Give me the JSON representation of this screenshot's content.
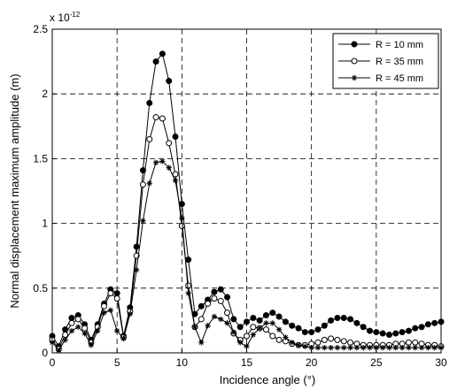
{
  "chart_data": {
    "type": "line",
    "xlabel": "Incidence angle (°)",
    "ylabel": "Normal displacement maximum amplitude (m)",
    "y_multiplier": "x 10",
    "y_exponent": "-12",
    "xlim": [
      0,
      30
    ],
    "ylim": [
      0,
      2.5
    ],
    "xticks": [
      "0",
      "5",
      "10",
      "15",
      "20",
      "25",
      "30"
    ],
    "yticks": [
      "0",
      "0.5",
      "1",
      "1.5",
      "2",
      "2.5"
    ],
    "grid": true,
    "legend_position": "top-right",
    "x": [
      0,
      0.5,
      1,
      1.5,
      2,
      2.5,
      3,
      3.5,
      4,
      4.5,
      5,
      5.5,
      6,
      6.5,
      7,
      7.5,
      8,
      8.5,
      9,
      9.5,
      10,
      10.5,
      11,
      11.5,
      12,
      12.5,
      13,
      13.5,
      14,
      14.5,
      15,
      15.5,
      16,
      16.5,
      17,
      17.5,
      18,
      18.5,
      19,
      19.5,
      20,
      20.5,
      21,
      21.5,
      22,
      22.5,
      23,
      23.5,
      24,
      24.5,
      25,
      25.5,
      26,
      26.5,
      27,
      27.5,
      28,
      28.5,
      29,
      29.5,
      30
    ],
    "series": [
      {
        "name": "R = 10 mm",
        "marker": "filled-circle",
        "values": [
          0.13,
          0.05,
          0.18,
          0.27,
          0.29,
          0.22,
          0.1,
          0.22,
          0.38,
          0.49,
          0.46,
          0.13,
          0.35,
          0.82,
          1.41,
          1.93,
          2.25,
          2.31,
          2.1,
          1.67,
          1.15,
          0.72,
          0.3,
          0.36,
          0.41,
          0.47,
          0.49,
          0.43,
          0.26,
          0.2,
          0.24,
          0.27,
          0.25,
          0.29,
          0.31,
          0.28,
          0.24,
          0.21,
          0.19,
          0.16,
          0.16,
          0.18,
          0.21,
          0.25,
          0.27,
          0.27,
          0.26,
          0.23,
          0.2,
          0.17,
          0.16,
          0.15,
          0.14,
          0.15,
          0.16,
          0.17,
          0.19,
          0.2,
          0.22,
          0.23,
          0.24
        ]
      },
      {
        "name": "R = 35 mm",
        "marker": "open-circle",
        "values": [
          0.1,
          0.03,
          0.14,
          0.23,
          0.26,
          0.19,
          0.08,
          0.2,
          0.36,
          0.46,
          0.42,
          0.12,
          0.32,
          0.75,
          1.3,
          1.65,
          1.82,
          1.81,
          1.62,
          1.38,
          0.98,
          0.52,
          0.2,
          0.26,
          0.38,
          0.42,
          0.4,
          0.31,
          0.15,
          0.1,
          0.13,
          0.2,
          0.19,
          0.18,
          0.13,
          0.1,
          0.09,
          0.07,
          0.06,
          0.06,
          0.07,
          0.08,
          0.1,
          0.11,
          0.1,
          0.09,
          0.08,
          0.07,
          0.06,
          0.06,
          0.06,
          0.06,
          0.06,
          0.07,
          0.07,
          0.08,
          0.08,
          0.07,
          0.06,
          0.06,
          0.05
        ]
      },
      {
        "name": "R = 45 mm",
        "marker": "asterisk",
        "values": [
          0.08,
          0.02,
          0.1,
          0.17,
          0.2,
          0.15,
          0.06,
          0.17,
          0.31,
          0.33,
          0.17,
          0.11,
          0.3,
          0.64,
          1.02,
          1.31,
          1.47,
          1.48,
          1.43,
          1.33,
          1.04,
          0.46,
          0.2,
          0.08,
          0.21,
          0.28,
          0.26,
          0.23,
          0.16,
          0.08,
          0.05,
          0.14,
          0.19,
          0.23,
          0.23,
          0.18,
          0.12,
          0.08,
          0.06,
          0.05,
          0.04,
          0.04,
          0.04,
          0.04,
          0.04,
          0.04,
          0.04,
          0.04,
          0.04,
          0.04,
          0.04,
          0.04,
          0.04,
          0.04,
          0.04,
          0.04,
          0.04,
          0.04,
          0.04,
          0.04,
          0.04
        ]
      }
    ]
  }
}
